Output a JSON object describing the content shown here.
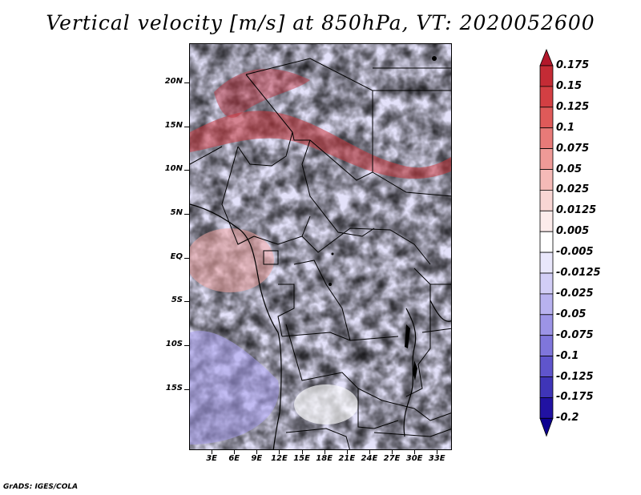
{
  "title": "Vertical velocity [m/s] at 850hPa, VT: 2020052600",
  "footer": "GrADS: IGES/COLA",
  "map": {
    "field": "vertical velocity",
    "level": "850hPa",
    "lon_range": [
      0,
      35
    ],
    "lat_range": [
      -22,
      24.5
    ],
    "y_ticks": [
      {
        "label": "20N",
        "lat": 20
      },
      {
        "label": "15N",
        "lat": 15
      },
      {
        "label": "10N",
        "lat": 10
      },
      {
        "label": "5N",
        "lat": 5
      },
      {
        "label": "EQ",
        "lat": 0
      },
      {
        "label": "5S",
        "lat": -5
      },
      {
        "label": "10S",
        "lat": -10
      },
      {
        "label": "15S",
        "lat": -15
      }
    ],
    "x_ticks": [
      {
        "label": "3E",
        "lon": 3
      },
      {
        "label": "6E",
        "lon": 6
      },
      {
        "label": "9E",
        "lon": 9
      },
      {
        "label": "12E",
        "lon": 12
      },
      {
        "label": "15E",
        "lon": 15
      },
      {
        "label": "18E",
        "lon": 18
      },
      {
        "label": "21E",
        "lon": 21
      },
      {
        "label": "24E",
        "lon": 24
      },
      {
        "label": "27E",
        "lon": 27
      },
      {
        "label": "30E",
        "lon": 30
      },
      {
        "label": "33E",
        "lon": 33
      }
    ]
  },
  "colorbar": {
    "labels": [
      "0.175",
      "0.15",
      "0.125",
      "0.1",
      "0.075",
      "0.05",
      "0.025",
      "0.0125",
      "0.005",
      "-0.005",
      "-0.0125",
      "-0.025",
      "-0.05",
      "-0.075",
      "-0.1",
      "-0.125",
      "-0.175",
      "-0.2"
    ],
    "colors": [
      "#b2182b",
      "#c42b35",
      "#d33f43",
      "#df5a59",
      "#e87a78",
      "#ef9a97",
      "#f5bab7",
      "#f9d6d4",
      "#fdeceb",
      "#ffffff",
      "#e9e7fb",
      "#d2cef6",
      "#b8b2ef",
      "#9c94e6",
      "#7f76db",
      "#5f55cc",
      "#3f35b8",
      "#2112a2",
      "#0c0090"
    ]
  }
}
